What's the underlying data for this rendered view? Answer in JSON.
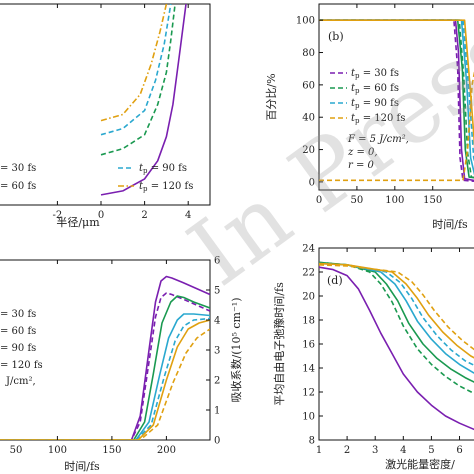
{
  "colors": {
    "30": "#7a1fb0",
    "60": "#1a9950",
    "90": "#2aa8cf",
    "120": "#e0a010"
  },
  "watermark": "In Press",
  "chart_data": [
    {
      "type": "line",
      "panel": "a",
      "xlabel": "半径/μm",
      "ylabel": "",
      "xlim": [
        -5,
        5
      ],
      "ylim": [
        0,
        1
      ],
      "xticks": [
        -2,
        0,
        2,
        4
      ],
      "legend": [
        {
          "label": "= 30 fs",
          "style": "solid",
          "color_key": "30"
        },
        {
          "label": "= 60 fs",
          "style": "dashed",
          "color_key": "60"
        },
        {
          "label": "t_p = 90 fs",
          "style": "dashed",
          "color_key": "90"
        },
        {
          "label": "t_p = 120 fs",
          "style": "dashdot",
          "color_key": "120"
        }
      ],
      "legend_placement": "bottom",
      "series": [
        {
          "color_key": "30",
          "style": "solid",
          "x": [
            0.0,
            1.0,
            2.0,
            2.6,
            3.0,
            3.3,
            3.6,
            3.9
          ],
          "y": [
            0.05,
            0.07,
            0.13,
            0.22,
            0.34,
            0.5,
            0.75,
            1.0
          ]
        },
        {
          "color_key": "60",
          "style": "dashed",
          "x": [
            0.0,
            1.0,
            2.0,
            2.6,
            3.0,
            3.2,
            3.4
          ],
          "y": [
            0.25,
            0.28,
            0.35,
            0.5,
            0.66,
            0.82,
            1.0
          ]
        },
        {
          "color_key": "90",
          "style": "dashed",
          "x": [
            0.0,
            1.0,
            2.0,
            2.5,
            2.9,
            3.2
          ],
          "y": [
            0.35,
            0.38,
            0.47,
            0.62,
            0.8,
            1.0
          ]
        },
        {
          "color_key": "120",
          "style": "dashdot",
          "x": [
            0.0,
            1.0,
            1.8,
            2.3,
            2.7,
            3.0
          ],
          "y": [
            0.42,
            0.45,
            0.55,
            0.7,
            0.86,
            1.0
          ]
        }
      ]
    },
    {
      "type": "line",
      "panel": "b",
      "panel_label": "(b)",
      "xlabel": "时间/fs",
      "ylabel": "百分比/%",
      "xlim": [
        0,
        215
      ],
      "ylim": [
        -5,
        110
      ],
      "xticks": [
        0,
        50,
        100,
        150
      ],
      "yticks": [
        0,
        20,
        40,
        60,
        80,
        100
      ],
      "legend": [
        {
          "label": "t_p = 30 fs",
          "style": "dashed",
          "color_key": "30"
        },
        {
          "label": "t_p = 60 fs",
          "style": "dashed",
          "color_key": "60"
        },
        {
          "label": "t_p = 90 fs",
          "style": "dashed",
          "color_key": "90"
        },
        {
          "label": "t_p = 120 fs",
          "style": "dashed",
          "color_key": "120"
        }
      ],
      "legend_placement": "left",
      "annotations": [
        "F = 5 J/cm²,",
        "z = 0,",
        "r = 0"
      ],
      "series": [
        {
          "color_key": "30",
          "style": "solid",
          "x": [
            0,
            180,
            184,
            188,
            192,
            215
          ],
          "y": [
            100,
            100,
            80,
            20,
            2,
            0
          ]
        },
        {
          "color_key": "30",
          "style": "dashed",
          "x": [
            0,
            178,
            183,
            186,
            190,
            215
          ],
          "y": [
            100,
            100,
            70,
            15,
            1,
            0
          ]
        },
        {
          "color_key": "60",
          "style": "solid",
          "x": [
            0,
            183,
            189,
            193,
            198,
            215
          ],
          "y": [
            100,
            100,
            70,
            20,
            3,
            2
          ]
        },
        {
          "color_key": "60",
          "style": "dashed",
          "x": [
            0,
            185,
            191,
            196,
            201,
            215
          ],
          "y": [
            100,
            100,
            65,
            18,
            3,
            2
          ]
        },
        {
          "color_key": "90",
          "style": "solid",
          "x": [
            0,
            188,
            195,
            200,
            206,
            215
          ],
          "y": [
            100,
            100,
            60,
            15,
            3,
            2
          ]
        },
        {
          "color_key": "90",
          "style": "dashed",
          "x": [
            0,
            190,
            198,
            204,
            210,
            215
          ],
          "y": [
            100,
            100,
            55,
            15,
            4,
            3
          ]
        },
        {
          "color_key": "120",
          "style": "solid",
          "x": [
            0,
            192,
            200,
            207,
            215
          ],
          "y": [
            100,
            100,
            55,
            12,
            5
          ]
        },
        {
          "color_key": "120",
          "style": "dashed",
          "x": [
            0,
            190,
            196,
            202,
            215
          ],
          "y": [
            1,
            1,
            20,
            60,
            92
          ]
        }
      ]
    },
    {
      "type": "line",
      "panel": "c",
      "xlabel": "时间/fs",
      "ylabel_right": "吸收系数/(10⁵ cm⁻¹)",
      "xlim": [
        40,
        240
      ],
      "ylim": [
        0,
        6
      ],
      "xticks": [
        100,
        150,
        200
      ],
      "xticks_extra_left": [
        50
      ],
      "yticks_right": [
        0,
        1,
        2,
        3,
        4,
        5,
        6
      ],
      "legend": [
        {
          "label": "= 30 fs",
          "style": "solid",
          "color_key": "30"
        },
        {
          "label": "= 60 fs",
          "style": "dashed",
          "color_key": "60"
        },
        {
          "label": "= 90 fs",
          "style": "dashed",
          "color_key": "90"
        },
        {
          "label": "= 120 fs",
          "style": "dashed",
          "color_key": "120"
        }
      ],
      "legend_placement": "left",
      "annotations": [
        "J/cm²,"
      ],
      "series": [
        {
          "color_key": "30",
          "style": "solid",
          "x": [
            40,
            168,
            176,
            184,
            190,
            195,
            200,
            205,
            215,
            240
          ],
          "y": [
            0,
            0,
            0.8,
            3.0,
            4.6,
            5.3,
            5.45,
            5.4,
            5.25,
            4.85
          ]
        },
        {
          "color_key": "30",
          "style": "dashed",
          "x": [
            40,
            168,
            176,
            184,
            190,
            195,
            200,
            205,
            215,
            240
          ],
          "y": [
            0,
            0,
            0.6,
            2.6,
            4.1,
            4.75,
            4.9,
            4.85,
            4.7,
            4.3
          ]
        },
        {
          "color_key": "60",
          "style": "solid",
          "x": [
            40,
            170,
            180,
            188,
            196,
            204,
            210,
            216,
            225,
            240
          ],
          "y": [
            0,
            0,
            0.6,
            2.2,
            3.9,
            4.6,
            4.8,
            4.75,
            4.6,
            4.4
          ]
        },
        {
          "color_key": "90",
          "style": "solid",
          "x": [
            40,
            172,
            184,
            194,
            202,
            210,
            216,
            225,
            240
          ],
          "y": [
            0,
            0,
            0.6,
            2.2,
            3.4,
            4.0,
            4.2,
            4.2,
            4.15
          ]
        },
        {
          "color_key": "90",
          "style": "dashed",
          "x": [
            40,
            172,
            186,
            198,
            208,
            216,
            225,
            240
          ],
          "y": [
            0,
            0,
            0.5,
            2.1,
            3.3,
            3.8,
            4.0,
            4.05
          ]
        },
        {
          "color_key": "120",
          "style": "solid",
          "x": [
            40,
            174,
            188,
            200,
            210,
            220,
            230,
            240
          ],
          "y": [
            0,
            0,
            0.5,
            2.0,
            3.1,
            3.7,
            3.9,
            4.0
          ]
        },
        {
          "color_key": "120",
          "style": "dashed",
          "x": [
            40,
            176,
            192,
            206,
            218,
            228,
            240
          ],
          "y": [
            0,
            0,
            0.5,
            1.9,
            2.9,
            3.4,
            3.7
          ]
        }
      ]
    },
    {
      "type": "line",
      "panel": "d",
      "panel_label": "(d)",
      "xlabel": "激光能量密度/",
      "ylabel": "平均自由电子弛豫时间/fs",
      "xlim": [
        1,
        6.8
      ],
      "ylim": [
        8,
        24
      ],
      "xticks": [
        1,
        2,
        3,
        4,
        5,
        6
      ],
      "yticks": [
        8,
        10,
        12,
        14,
        16,
        18,
        20,
        22,
        24
      ],
      "series": [
        {
          "color_key": "30",
          "style": "solid",
          "x": [
            1.0,
            1.5,
            2.0,
            2.4,
            2.8,
            3.2,
            3.6,
            4.0,
            4.5,
            5.0,
            5.5,
            6.0,
            6.5,
            6.8
          ],
          "y": [
            22.4,
            22.2,
            21.7,
            20.6,
            18.8,
            16.9,
            15.2,
            13.5,
            12.0,
            10.9,
            10.0,
            9.4,
            8.9,
            8.7
          ]
        },
        {
          "color_key": "60",
          "style": "dashed",
          "x": [
            1.0,
            2.0,
            2.8,
            3.2,
            3.6,
            4.0,
            4.5,
            5.0,
            5.5,
            6.0,
            6.5,
            6.8
          ],
          "y": [
            22.8,
            22.6,
            22.0,
            21.0,
            19.5,
            17.5,
            15.6,
            14.3,
            13.3,
            12.5,
            11.9,
            11.6
          ]
        },
        {
          "color_key": "60",
          "style": "solid",
          "x": [
            1.0,
            2.0,
            3.0,
            3.4,
            3.8,
            4.2,
            4.7,
            5.2,
            5.7,
            6.2,
            6.8
          ],
          "y": [
            22.8,
            22.6,
            22.0,
            21.0,
            19.6,
            17.7,
            16.0,
            14.8,
            13.9,
            13.2,
            12.5
          ]
        },
        {
          "color_key": "90",
          "style": "solid",
          "x": [
            1.0,
            2.0,
            3.2,
            3.7,
            4.1,
            4.5,
            5.0,
            5.5,
            6.0,
            6.5,
            6.8
          ],
          "y": [
            22.7,
            22.6,
            22.0,
            21.0,
            19.6,
            17.9,
            16.4,
            15.2,
            14.3,
            13.6,
            13.3
          ]
        },
        {
          "color_key": "90",
          "style": "dashed",
          "x": [
            1.0,
            2.0,
            3.4,
            3.9,
            4.3,
            4.7,
            5.2,
            5.7,
            6.2,
            6.8
          ],
          "y": [
            22.7,
            22.6,
            22.0,
            21.1,
            19.8,
            18.2,
            16.7,
            15.5,
            14.6,
            13.9
          ]
        },
        {
          "color_key": "120",
          "style": "solid",
          "x": [
            1.0,
            2.0,
            3.6,
            4.1,
            4.5,
            4.9,
            5.4,
            5.9,
            6.4,
            6.8
          ],
          "y": [
            22.7,
            22.6,
            22.0,
            21.0,
            19.8,
            18.4,
            17.0,
            15.9,
            15.0,
            14.5
          ]
        },
        {
          "color_key": "120",
          "style": "dashed",
          "x": [
            1.0,
            2.0,
            3.8,
            4.3,
            4.7,
            5.1,
            5.6,
            6.1,
            6.6,
            6.8
          ],
          "y": [
            22.6,
            22.5,
            22.0,
            21.2,
            20.1,
            18.8,
            17.4,
            16.3,
            15.4,
            15.1
          ]
        }
      ]
    }
  ]
}
